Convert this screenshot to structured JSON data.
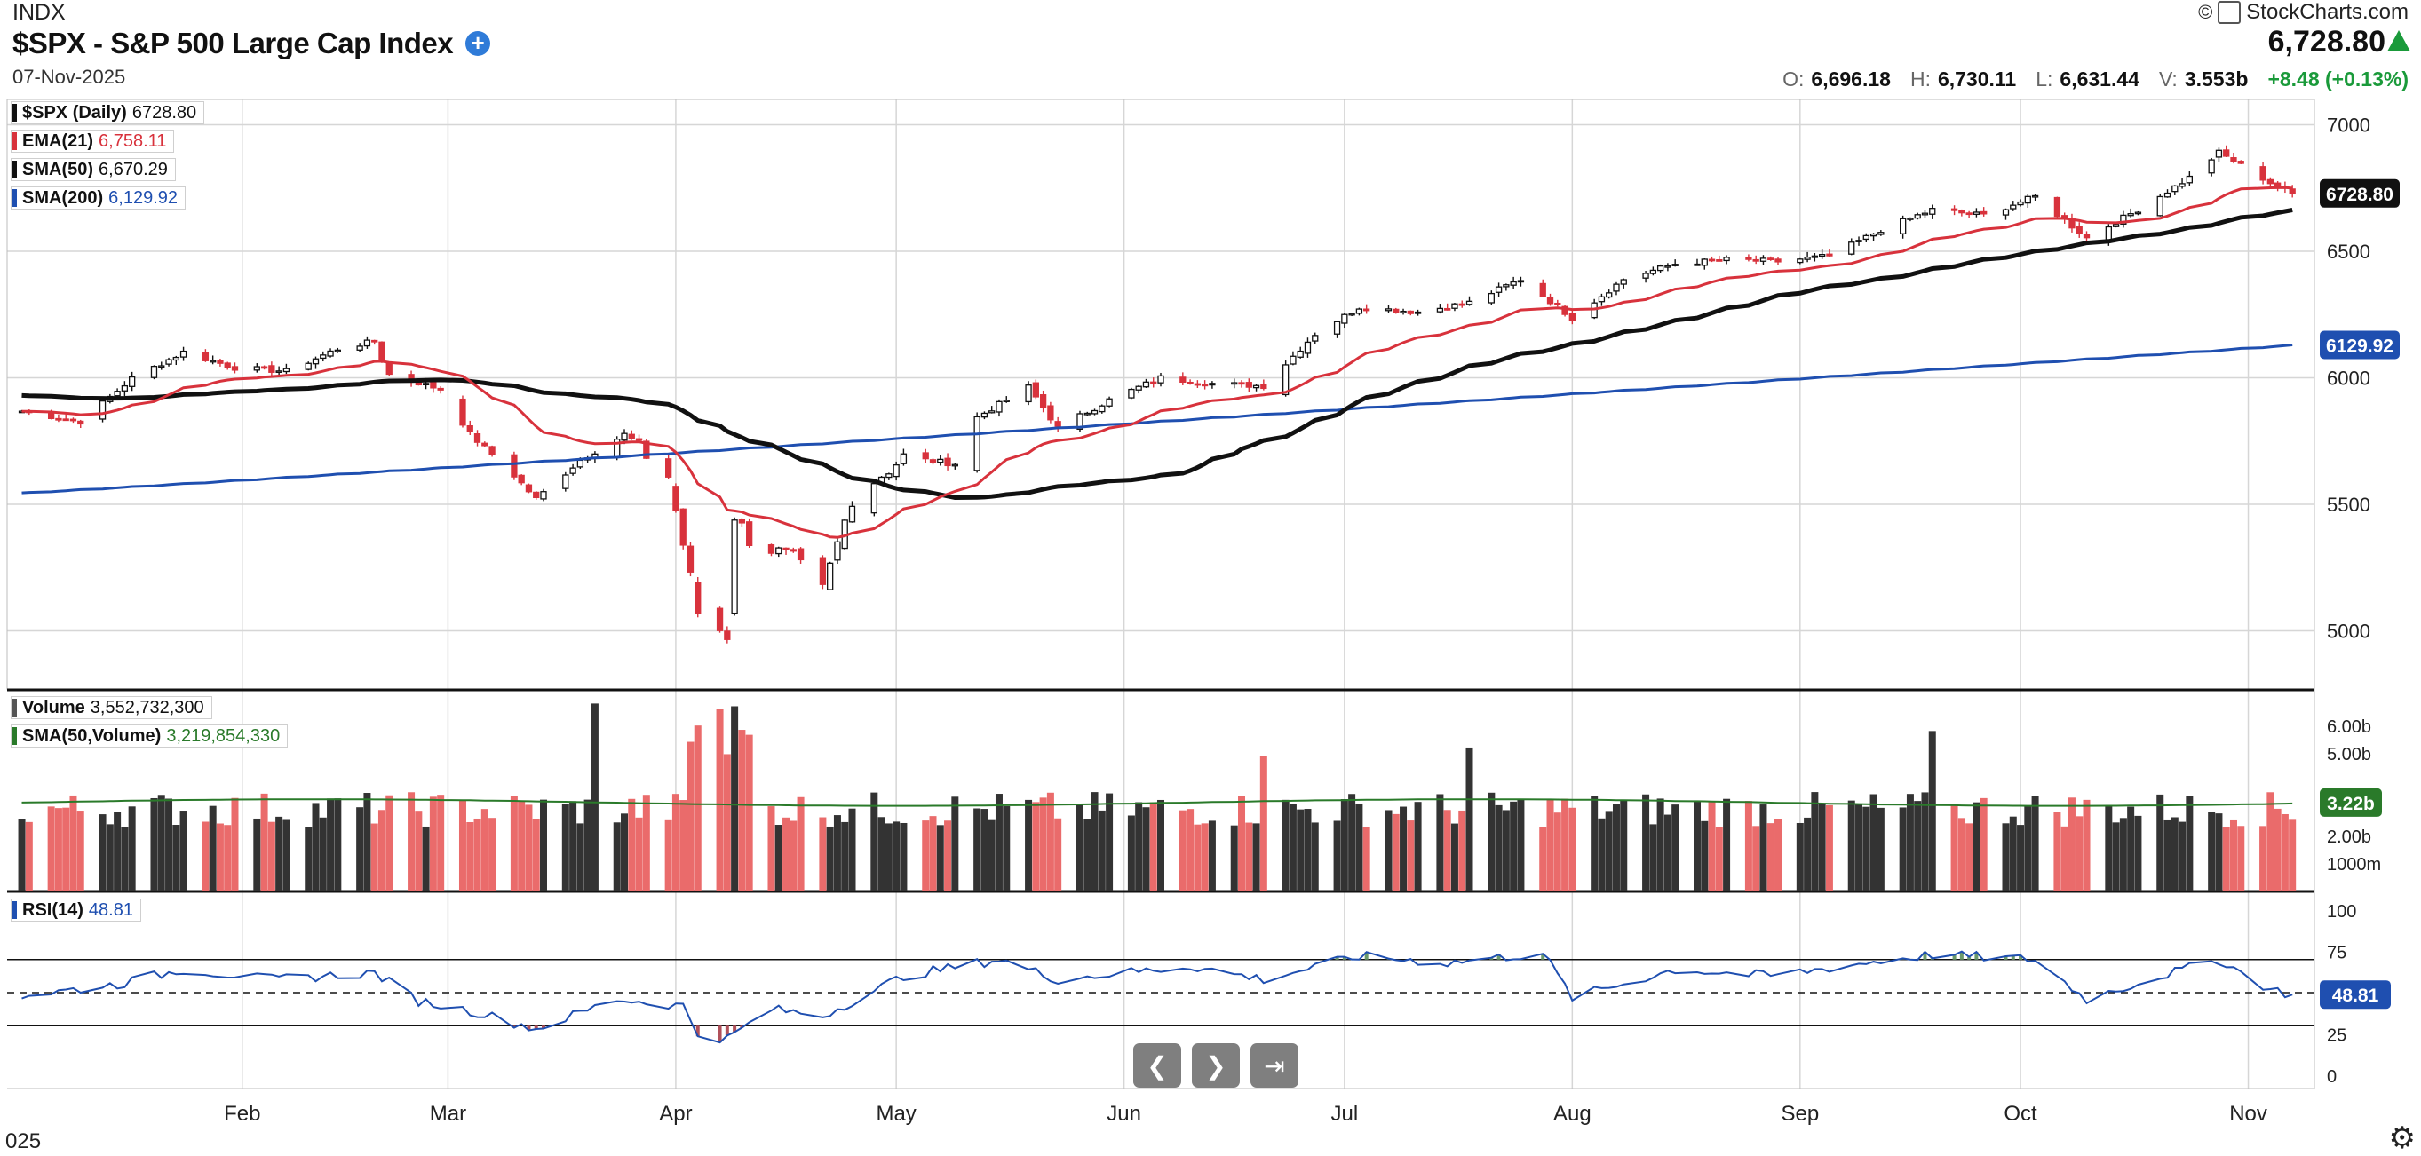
{
  "header": {
    "exchange": "INDX",
    "title": "$SPX - S&P 500 Large Cap Index",
    "date": "07-Nov-2025",
    "brand": "StockCharts.com",
    "copyright": "©",
    "last_price": "6,728.80",
    "ohlc": [
      {
        "key": "O:",
        "value": "6,696.18"
      },
      {
        "key": "H:",
        "value": "6,730.11"
      },
      {
        "key": "L:",
        "value": "6,631.44"
      },
      {
        "key": "V:",
        "value": "3.553b"
      }
    ],
    "change": "+8.48 (+0.13%)"
  },
  "legends": {
    "price": [
      {
        "name": "$SPX (Daily)",
        "value": "6728.80",
        "color": "#111111",
        "value_color": "#111111"
      },
      {
        "name": "EMA(21)",
        "value": "6,758.11",
        "color": "#d8323c",
        "value_color": "#d8323c"
      },
      {
        "name": "SMA(50)",
        "value": "6,670.29",
        "color": "#111111",
        "value_color": "#111111"
      },
      {
        "name": "SMA(200)",
        "value": "6,129.92",
        "color": "#1f4fb0",
        "value_color": "#1f4fb0"
      }
    ],
    "volume": [
      {
        "name": "Volume",
        "value": "3,552,732,300",
        "color": "#555555",
        "value_color": "#111111"
      },
      {
        "name": "SMA(50,Volume)",
        "value": "3,219,854,330",
        "color": "#2a7a2a",
        "value_color": "#2a7a2a"
      }
    ],
    "rsi": [
      {
        "name": "RSI(14)",
        "value": "48.81",
        "color": "#1f4fb0",
        "value_color": "#1f4fb0"
      }
    ]
  },
  "navigation": {
    "prev_icon": "chevron-left-icon",
    "next_icon": "chevron-right-icon",
    "end_icon": "skip-to-end-icon"
  },
  "footer": {
    "year_label": "025",
    "settings_icon": "gear-icon"
  },
  "chart_data": [
    {
      "type": "candlestick",
      "panel": "price",
      "title": "$SPX - S&P 500 Large Cap Index",
      "x_axis_labels": [
        "Feb",
        "Mar",
        "Apr",
        "May",
        "Jun",
        "Jul",
        "Aug",
        "Sep",
        "Oct",
        "Nov"
      ],
      "y_ticks": [
        5000,
        5500,
        6000,
        6500,
        7000
      ],
      "ylim": [
        4770,
        7100
      ],
      "price_tags": [
        {
          "label": "6728.80",
          "value": 6728.8,
          "style": "black"
        },
        {
          "label": "6129.92",
          "value": 6129.92,
          "style": "blue"
        }
      ],
      "close_points": [
        [
          "2025-01-02",
          5868
        ],
        [
          "2025-01-10",
          5827
        ],
        [
          "2025-01-17",
          5997
        ],
        [
          "2025-01-24",
          6101
        ],
        [
          "2025-01-31",
          6040
        ],
        [
          "2025-02-07",
          6026
        ],
        [
          "2025-02-14",
          6114
        ],
        [
          "2025-02-19",
          6144
        ],
        [
          "2025-02-21",
          6013
        ],
        [
          "2025-02-28",
          5955
        ],
        [
          "2025-03-04",
          5778
        ],
        [
          "2025-03-10",
          5614
        ],
        [
          "2025-03-13",
          5521
        ],
        [
          "2025-03-19",
          5675
        ],
        [
          "2025-03-25",
          5776
        ],
        [
          "2025-03-31",
          5612
        ],
        [
          "2025-04-04",
          5074
        ],
        [
          "2025-04-08",
          4982
        ],
        [
          "2025-04-09",
          5456
        ],
        [
          "2025-04-11",
          5363
        ],
        [
          "2025-04-17",
          5282
        ],
        [
          "2025-04-21",
          5158
        ],
        [
          "2025-04-25",
          5525
        ],
        [
          "2025-05-02",
          5686
        ],
        [
          "2025-05-09",
          5660
        ],
        [
          "2025-05-12",
          5844
        ],
        [
          "2025-05-19",
          5963
        ],
        [
          "2025-05-23",
          5802
        ],
        [
          "2025-05-30",
          5912
        ],
        [
          "2025-06-06",
          6000
        ],
        [
          "2025-06-13",
          5977
        ],
        [
          "2025-06-20",
          5968
        ],
        [
          "2025-06-27",
          6173
        ],
        [
          "2025-07-03",
          6279
        ],
        [
          "2025-07-11",
          6260
        ],
        [
          "2025-07-18",
          6297
        ],
        [
          "2025-07-25",
          6389
        ],
        [
          "2025-08-01",
          6238
        ],
        [
          "2025-08-08",
          6389
        ],
        [
          "2025-08-15",
          6450
        ],
        [
          "2025-08-22",
          6467
        ],
        [
          "2025-08-29",
          6460
        ],
        [
          "2025-09-05",
          6481
        ],
        [
          "2025-09-12",
          6584
        ],
        [
          "2025-09-19",
          6664
        ],
        [
          "2025-09-26",
          6643
        ],
        [
          "2025-10-03",
          6716
        ],
        [
          "2025-10-10",
          6553
        ],
        [
          "2025-10-17",
          6664
        ],
        [
          "2025-10-24",
          6791
        ],
        [
          "2025-10-28",
          6890
        ],
        [
          "2025-10-31",
          6840
        ],
        [
          "2025-11-04",
          6771
        ],
        [
          "2025-11-07",
          6728.8
        ]
      ],
      "series": [
        {
          "name": "$SPX (Daily)",
          "last": 6728.8
        },
        {
          "name": "EMA(21)",
          "last": 6758.11
        },
        {
          "name": "SMA(50)",
          "last": 6670.29
        },
        {
          "name": "SMA(200)",
          "last": 6129.92
        }
      ],
      "legend_position": "top-left",
      "grid": true
    },
    {
      "type": "bar",
      "panel": "volume",
      "y_ticks_labels": [
        "1000m",
        "2.00b",
        "5.00b",
        "6.00b"
      ],
      "tag": "3.22b",
      "series": [
        {
          "name": "Volume",
          "last": 3552732300
        },
        {
          "name": "SMA(50,Volume)",
          "last": 3219854330
        }
      ],
      "notable_spikes": [
        [
          "2025-03-21",
          6.8
        ],
        [
          "2025-04-04",
          6.0
        ],
        [
          "2025-04-07",
          6.6
        ],
        [
          "2025-04-09",
          6.7
        ],
        [
          "2025-06-20",
          4.9
        ],
        [
          "2025-07-18",
          5.2
        ],
        [
          "2025-09-19",
          5.8
        ]
      ],
      "typical_range": [
        2.3,
        3.6
      ],
      "sma_level": 3.2
    },
    {
      "type": "line",
      "panel": "rsi",
      "name": "RSI(14)",
      "y_ticks": [
        0,
        25,
        75,
        100
      ],
      "overbought": 70,
      "oversold": 30,
      "midline": 50,
      "last": 48.81,
      "points": [
        [
          "2025-01-02",
          48
        ],
        [
          "2025-01-15",
          55
        ],
        [
          "2025-01-24",
          64
        ],
        [
          "2025-02-05",
          58
        ],
        [
          "2025-02-19",
          62
        ],
        [
          "2025-02-25",
          45
        ],
        [
          "2025-03-05",
          38
        ],
        [
          "2025-03-13",
          28
        ],
        [
          "2025-03-24",
          46
        ],
        [
          "2025-04-02",
          42
        ],
        [
          "2025-04-04",
          25
        ],
        [
          "2025-04-08",
          22
        ],
        [
          "2025-04-14",
          40
        ],
        [
          "2025-04-21",
          36
        ],
        [
          "2025-05-02",
          60
        ],
        [
          "2025-05-15",
          70
        ],
        [
          "2025-05-23",
          58
        ],
        [
          "2025-06-10",
          66
        ],
        [
          "2025-06-20",
          58
        ],
        [
          "2025-07-03",
          72
        ],
        [
          "2025-07-15",
          68
        ],
        [
          "2025-07-28",
          74
        ],
        [
          "2025-08-01",
          47
        ],
        [
          "2025-08-15",
          64
        ],
        [
          "2025-08-28",
          60
        ],
        [
          "2025-09-10",
          68
        ],
        [
          "2025-09-19",
          73
        ],
        [
          "2025-10-03",
          70
        ],
        [
          "2025-10-10",
          46
        ],
        [
          "2025-10-20",
          60
        ],
        [
          "2025-10-28",
          70
        ],
        [
          "2025-11-04",
          52
        ],
        [
          "2025-11-07",
          48.81
        ]
      ]
    }
  ]
}
